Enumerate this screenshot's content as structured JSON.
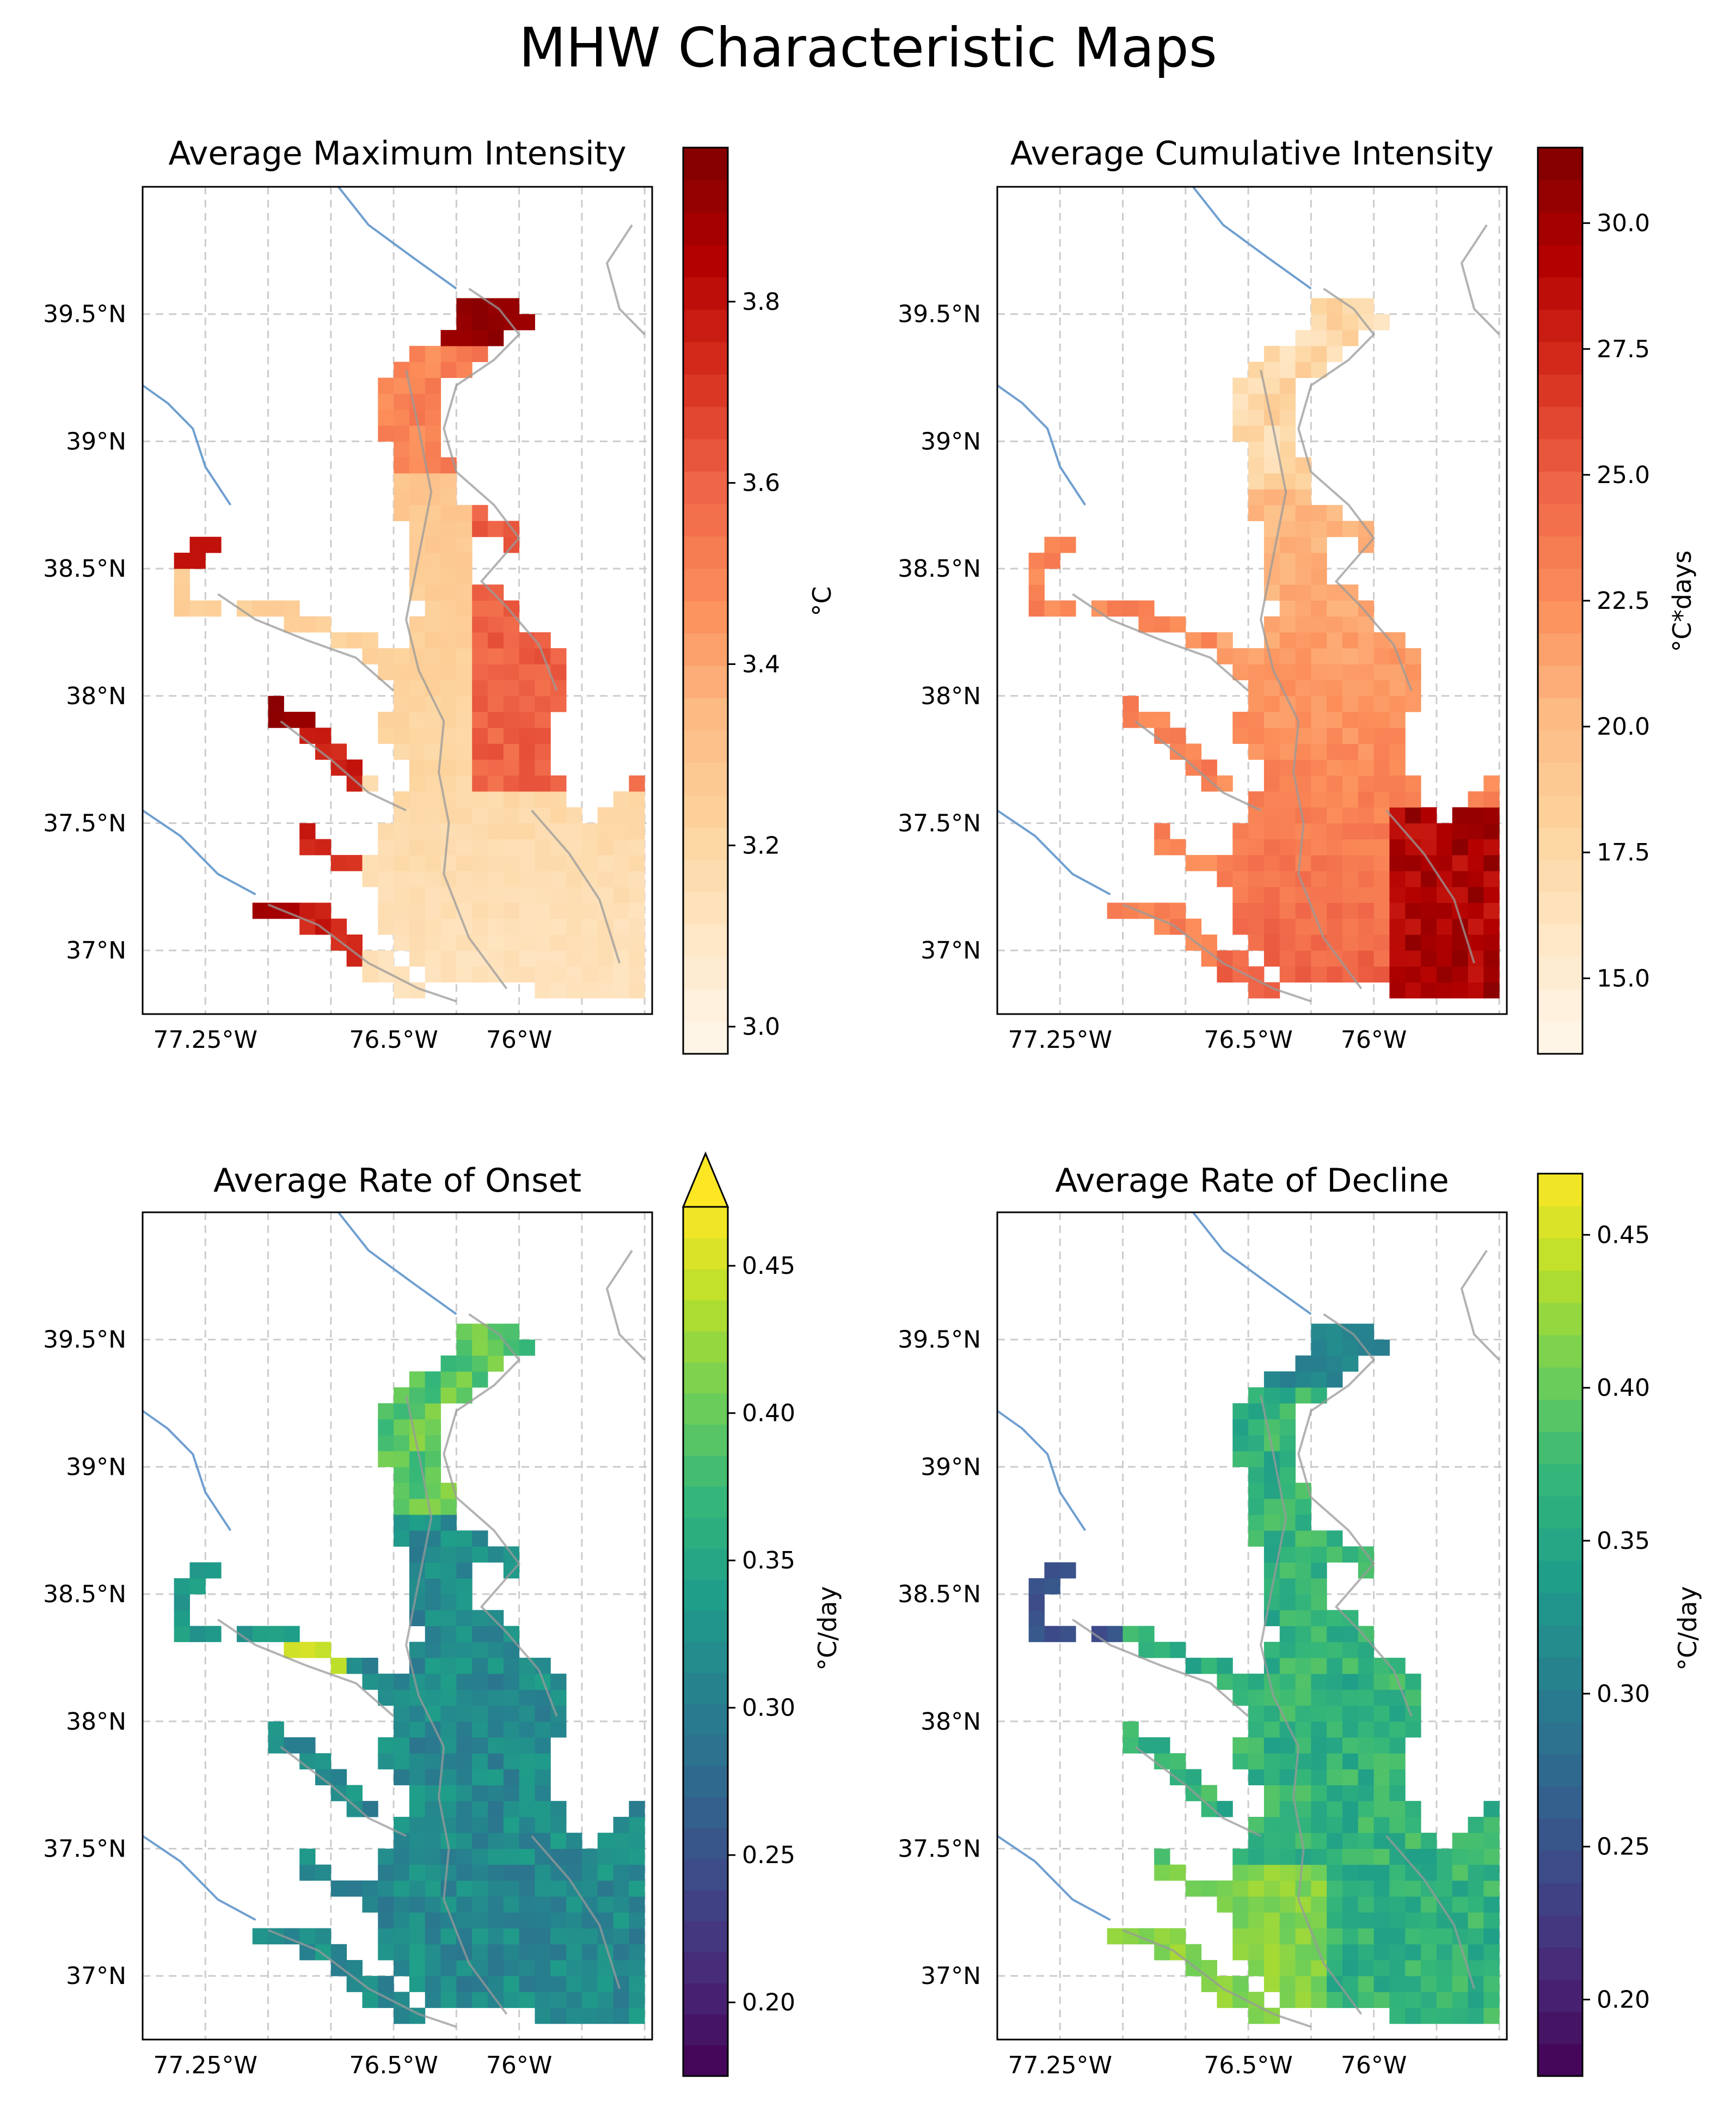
{
  "figure": {
    "title": "MHW Characteristic Maps"
  },
  "colors": {
    "land_outline": "#999999",
    "river": "#6f9fd0",
    "gridline": "#cccccc",
    "frame": "#000000",
    "background": "#ffffff"
  },
  "panels": [
    {
      "id": "max-intensity",
      "title": "Average Maximum Intensity",
      "colormap": "OrRd",
      "colorbar": {
        "label": "°C",
        "ticks": [
          "3.0",
          "3.2",
          "3.4",
          "3.6",
          "3.8"
        ],
        "range": [
          2.97,
          3.97
        ],
        "extend": "neither"
      },
      "field": "max_intensity"
    },
    {
      "id": "cumulative-intensity",
      "title": "Average Cumulative Intensity",
      "colormap": "OrRd",
      "colorbar": {
        "label": "°C*days",
        "ticks": [
          "15.0",
          "17.5",
          "20.0",
          "22.5",
          "25.0",
          "27.5",
          "30.0"
        ],
        "range": [
          13.5,
          31.5
        ],
        "extend": "neither"
      },
      "field": "cumulative_intensity"
    },
    {
      "id": "rate-onset",
      "title": "Average Rate of Onset",
      "colormap": "viridis",
      "colorbar": {
        "label": "°C/day",
        "ticks": [
          "0.20",
          "0.25",
          "0.30",
          "0.35",
          "0.40",
          "0.45"
        ],
        "range": [
          0.175,
          0.47
        ],
        "extend": "max"
      },
      "field": "rate_onset"
    },
    {
      "id": "rate-decline",
      "title": "Average Rate of Decline",
      "colormap": "viridis",
      "colorbar": {
        "label": "°C/day",
        "ticks": [
          "0.20",
          "0.25",
          "0.30",
          "0.35",
          "0.40",
          "0.45"
        ],
        "range": [
          0.175,
          0.47
        ],
        "extend": "neither"
      },
      "field": "rate_decline"
    }
  ],
  "axes": {
    "lat_range": [
      36.75,
      40.0
    ],
    "lon_range": [
      -77.5,
      -75.47
    ],
    "lat_ticks": [
      {
        "value": 37.0,
        "label": "37°N"
      },
      {
        "value": 37.5,
        "label": "37.5°N"
      },
      {
        "value": 38.0,
        "label": "38°N"
      },
      {
        "value": 38.5,
        "label": "38.5°N"
      },
      {
        "value": 39.0,
        "label": "39°N"
      },
      {
        "value": 39.5,
        "label": "39.5°N"
      }
    ],
    "lon_ticks": [
      {
        "value": -77.25,
        "label": "77.25°W"
      },
      {
        "value": -76.5,
        "label": "76.5°W"
      },
      {
        "value": -76.0,
        "label": "76°W"
      }
    ],
    "grid": true,
    "grid_style": "dashed"
  }
}
